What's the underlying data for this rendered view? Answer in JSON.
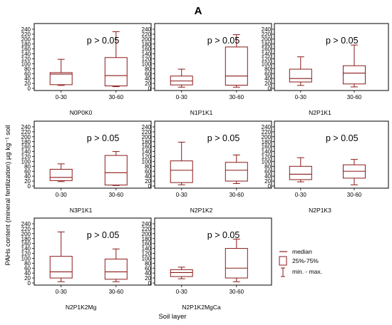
{
  "figure_label": "A",
  "y_axis_title": "PAHs content (mineral fertilization) µg kg⁻¹ soil",
  "x_axis_title": "Soil layer",
  "legend": {
    "median": "median",
    "box": "25%-75%",
    "whisker": "min. - max."
  },
  "colors": {
    "box_stroke": "#8b1a1a",
    "axis": "#000000"
  },
  "chart_data": {
    "type": "boxplot",
    "ylim": [
      0,
      240
    ],
    "yticks": [
      0,
      20,
      40,
      60,
      80,
      100,
      120,
      140,
      160,
      180,
      200,
      220,
      240
    ],
    "grid": false,
    "legend_position": "bottom-right",
    "categories": [
      "0-30",
      "30-60"
    ],
    "panels": [
      {
        "label": "N0P0K0",
        "annotation": "p > 0.05",
        "boxes": [
          {
            "category": "0-30",
            "min": 12,
            "q1": 15,
            "median": 58,
            "q3": 64,
            "max": 118
          },
          {
            "category": "30-60",
            "min": 7,
            "q1": 10,
            "median": 52,
            "q3": 125,
            "max": 230
          }
        ]
      },
      {
        "label": "N1P1K1",
        "annotation": "p > 0.05",
        "boxes": [
          {
            "category": "0-30",
            "min": 5,
            "q1": 14,
            "median": 30,
            "q3": 50,
            "max": 78
          },
          {
            "category": "30-60",
            "min": 5,
            "q1": 13,
            "median": 50,
            "q3": 168,
            "max": 218
          }
        ]
      },
      {
        "label": "N2P1K1",
        "annotation": "p > 0.05",
        "boxes": [
          {
            "category": "0-30",
            "min": 12,
            "q1": 26,
            "median": 40,
            "q3": 78,
            "max": 128
          },
          {
            "category": "30-60",
            "min": 6,
            "q1": 18,
            "median": 62,
            "q3": 92,
            "max": 176
          }
        ]
      },
      {
        "label": "N3P1K1",
        "annotation": "p > 0.05",
        "boxes": [
          {
            "category": "0-30",
            "min": 18,
            "q1": 22,
            "median": 35,
            "q3": 68,
            "max": 90
          },
          {
            "category": "30-60",
            "min": 2,
            "q1": 4,
            "median": 54,
            "q3": 124,
            "max": 140
          }
        ]
      },
      {
        "label": "N2P1K2",
        "annotation": "p > 0.05",
        "boxes": [
          {
            "category": "0-30",
            "min": 5,
            "q1": 14,
            "median": 64,
            "q3": 102,
            "max": 178
          },
          {
            "category": "30-60",
            "min": 10,
            "q1": 20,
            "median": 64,
            "q3": 96,
            "max": 126
          }
        ]
      },
      {
        "label": "N2P1K3",
        "annotation": "p > 0.05",
        "boxes": [
          {
            "category": "0-30",
            "min": 17,
            "q1": 26,
            "median": 48,
            "q3": 80,
            "max": 115
          },
          {
            "category": "30-60",
            "min": 5,
            "q1": 32,
            "median": 60,
            "q3": 86,
            "max": 108
          }
        ]
      },
      {
        "label": "N2P1K2Mg",
        "annotation": "p > 0.05",
        "boxes": [
          {
            "category": "0-30",
            "min": 5,
            "q1": 20,
            "median": 45,
            "q3": 108,
            "max": 207
          },
          {
            "category": "30-60",
            "min": 5,
            "q1": 15,
            "median": 45,
            "q3": 97,
            "max": 138
          }
        ]
      },
      {
        "label": "N2P1K2MgCa",
        "annotation": "p > 0.05",
        "boxes": [
          {
            "category": "0-30",
            "min": 17,
            "q1": 26,
            "median": 42,
            "q3": 54,
            "max": 64
          },
          {
            "category": "30-60",
            "min": 5,
            "q1": 20,
            "median": 60,
            "q3": 140,
            "max": 178
          }
        ]
      }
    ]
  }
}
